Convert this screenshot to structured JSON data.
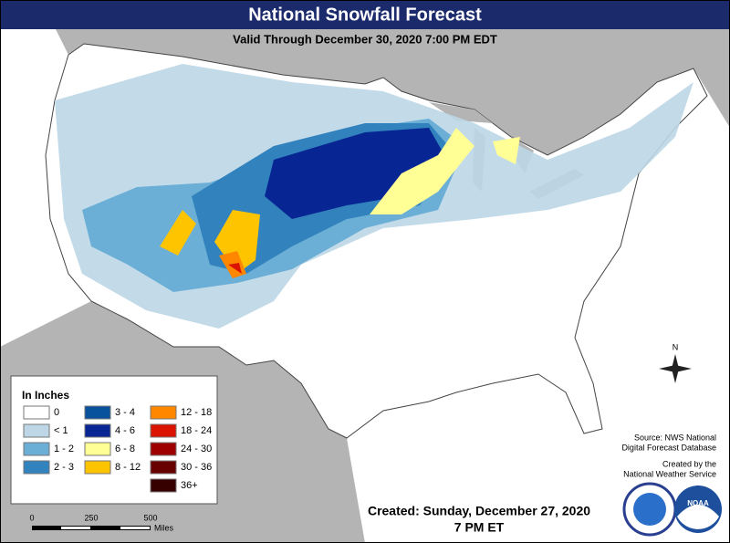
{
  "header": {
    "title": "National Snowfall Forecast",
    "subtitle": "Valid Through December 30, 2020 7:00 PM EDT"
  },
  "legend": {
    "title": "In Inches",
    "items": [
      {
        "label": "0",
        "color": "#ffffff"
      },
      {
        "label": "< 1",
        "color": "#bdd7e7"
      },
      {
        "label": "1 - 2",
        "color": "#6baed6"
      },
      {
        "label": "2 - 3",
        "color": "#3182bd"
      },
      {
        "label": "3 - 4",
        "color": "#08519c"
      },
      {
        "label": "4 - 6",
        "color": "#082594"
      },
      {
        "label": "6 - 8",
        "color": "#ffff96"
      },
      {
        "label": "8 - 12",
        "color": "#ffc400"
      },
      {
        "label": "12 - 18",
        "color": "#ff8700"
      },
      {
        "label": "18 - 24",
        "color": "#db1400"
      },
      {
        "label": "24 - 30",
        "color": "#9e0000"
      },
      {
        "label": "30 - 36",
        "color": "#690000"
      },
      {
        "label": "36+",
        "color": "#360000"
      }
    ]
  },
  "source": {
    "lines": [
      "Source: NWS National",
      "Digital Forecast Database"
    ]
  },
  "credit": {
    "lines": [
      "Created by the",
      "National Weather Service"
    ]
  },
  "created": {
    "lines": [
      "Created: Sunday, December 27, 2020",
      "7 PM ET"
    ]
  },
  "scale": {
    "ticks": [
      "0",
      "250",
      "500"
    ],
    "unit": "Miles"
  },
  "compass": "N",
  "logo": "NOAA"
}
